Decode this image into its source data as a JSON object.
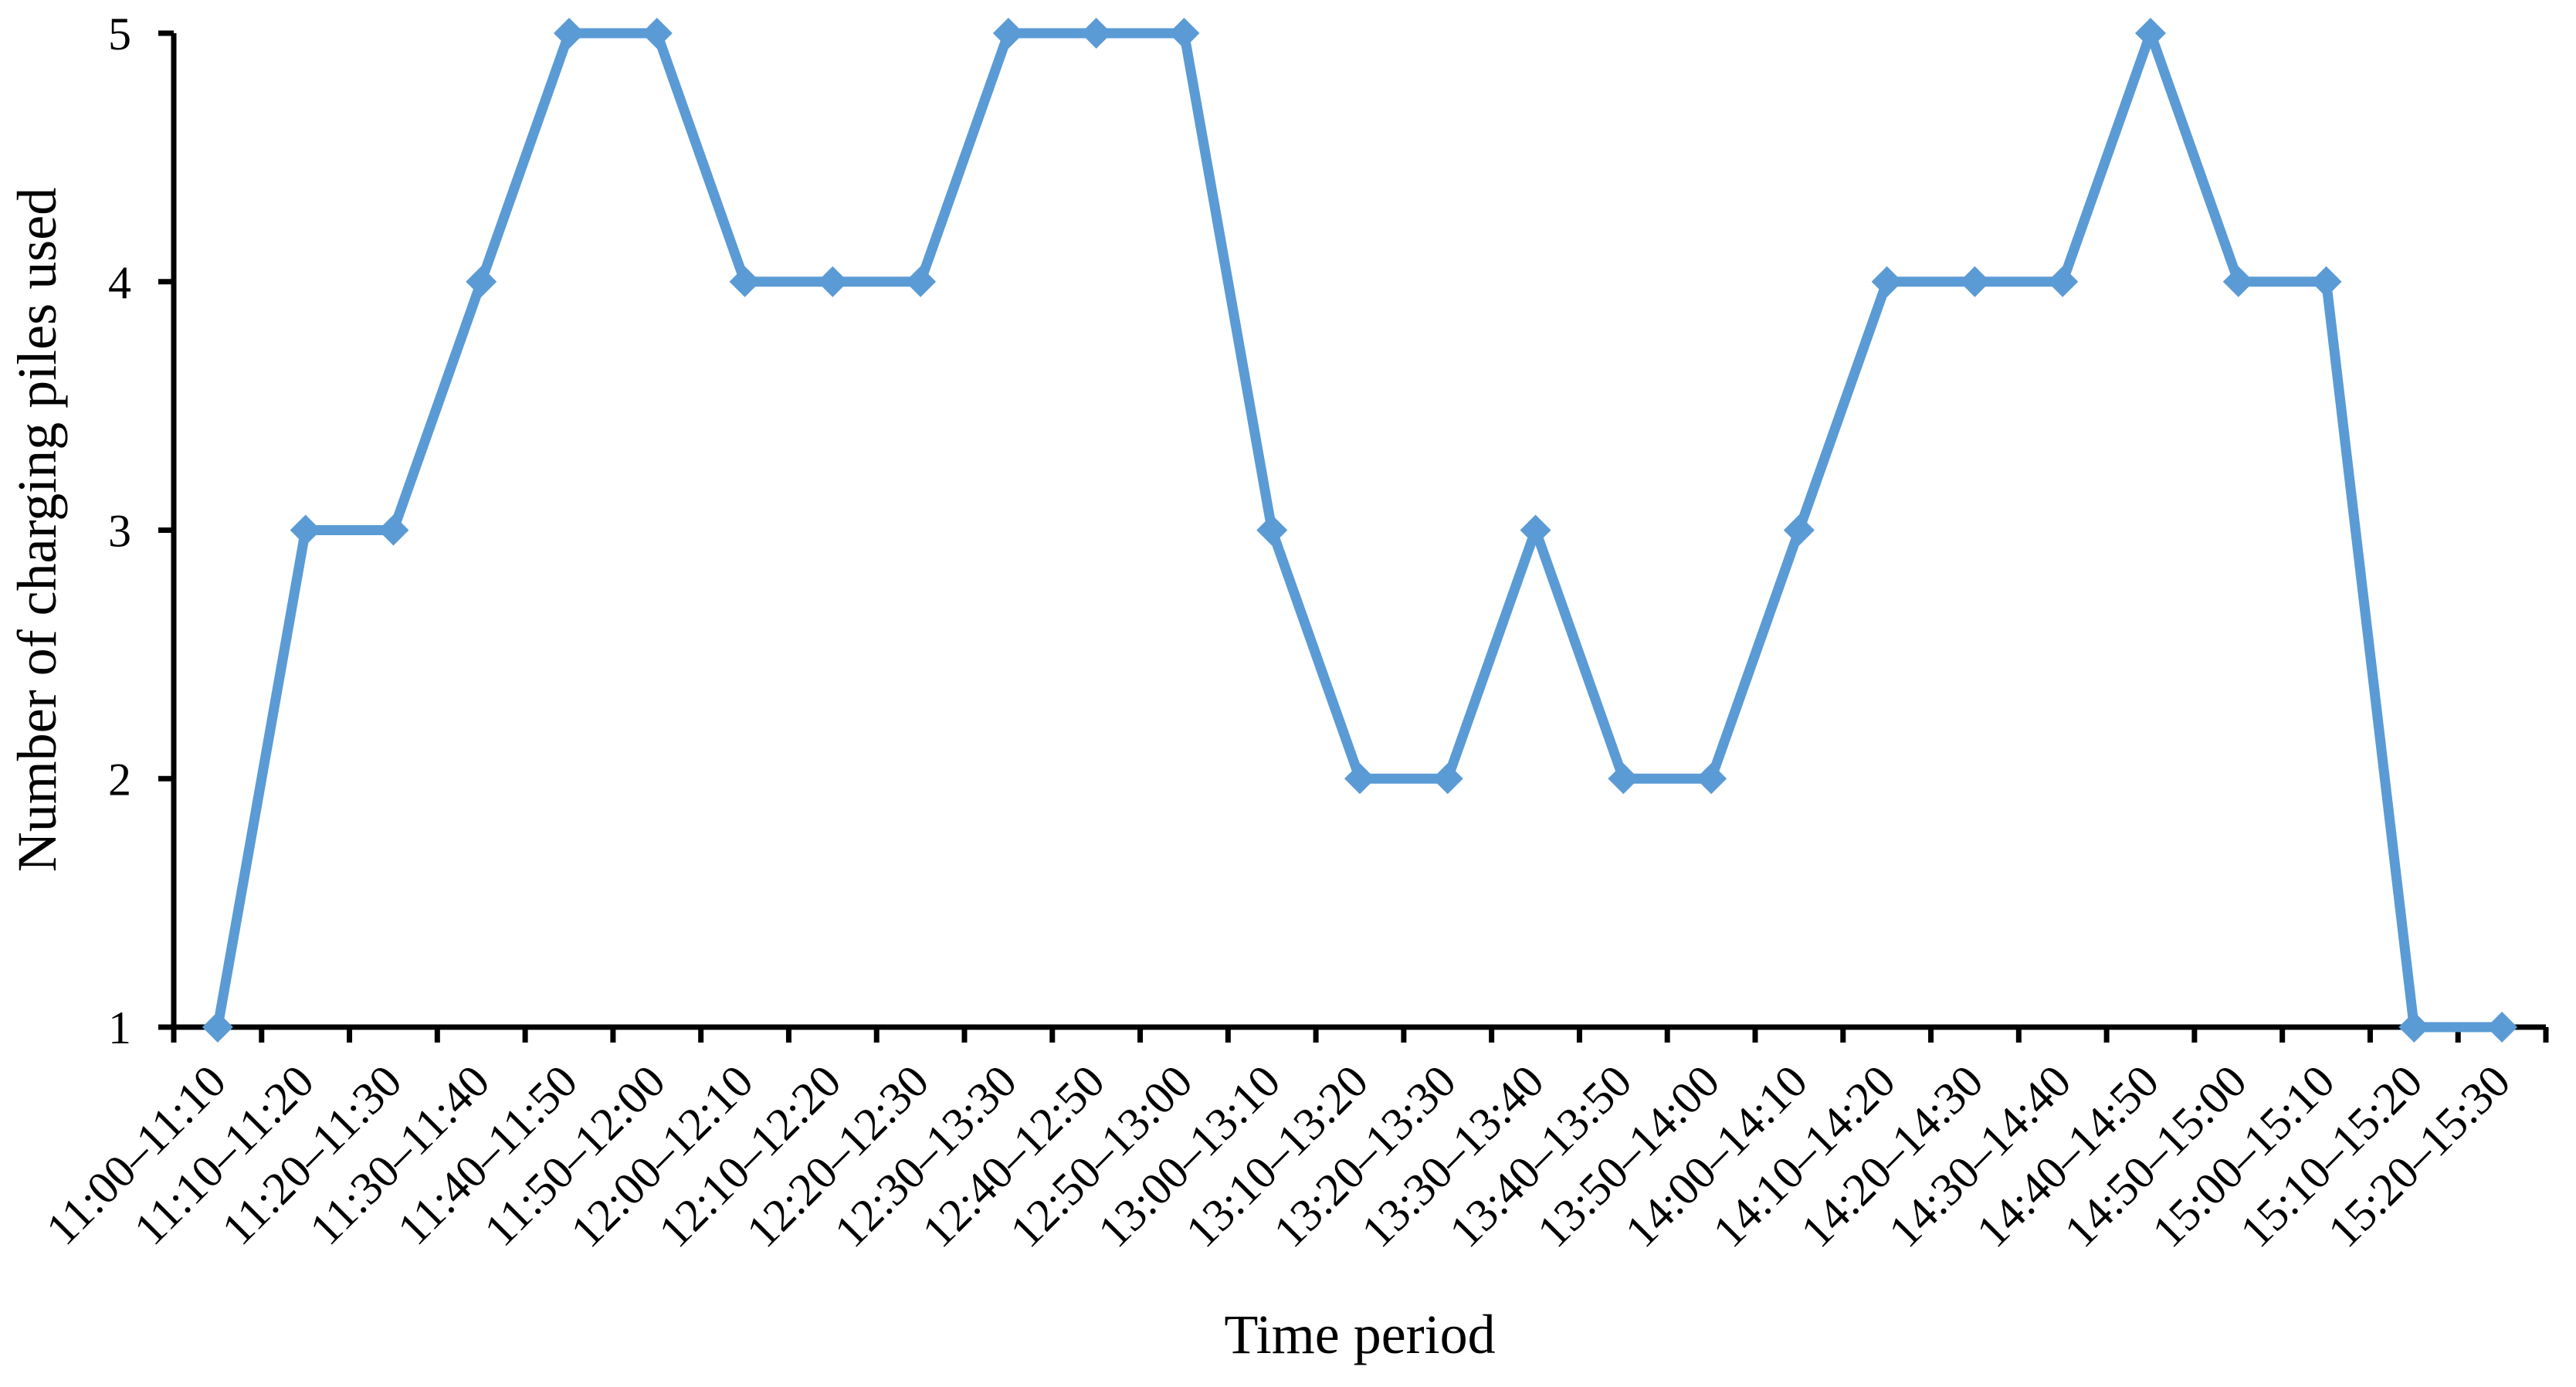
{
  "chart_data": {
    "type": "line",
    "xlabel": "Time period",
    "ylabel": "Number of charging piles used",
    "categories": [
      "11:00–11:10",
      "11:10–11:20",
      "11:20–11:30",
      "11:30–11:40",
      "11:40–11:50",
      "11:50–12:00",
      "12:00–12:10",
      "12:10–12:20",
      "12:20–12:30",
      "12:30–13:30",
      "12:40–12:50",
      "12:50–13:00",
      "13:00–13:10",
      "13:10–13:20",
      "13:20–13:30",
      "13:30–13:40",
      "13:40–13:50",
      "13:50–14:00",
      "14:00–14:10",
      "14:10–14:20",
      "14:20–14:30",
      "14:30–14:40",
      "14:40–14:50",
      "14:50–15:00",
      "15:00–15:10",
      "15:10–15:20",
      "15:20–15:30"
    ],
    "values": [
      1,
      3,
      3,
      4,
      5,
      5,
      4,
      4,
      4,
      5,
      5,
      5,
      3,
      2,
      2,
      3,
      2,
      2,
      3,
      4,
      4,
      4,
      5,
      4,
      4,
      1,
      1
    ],
    "yticks": [
      1,
      2,
      3,
      4,
      5
    ],
    "ylim": [
      1,
      5
    ],
    "grid": false,
    "legend_visible": false,
    "line_color": "#5B9BD5",
    "marker": "diamond",
    "axis_color": "#000000",
    "text_color": "#000000",
    "background_color": "#ffffff"
  }
}
